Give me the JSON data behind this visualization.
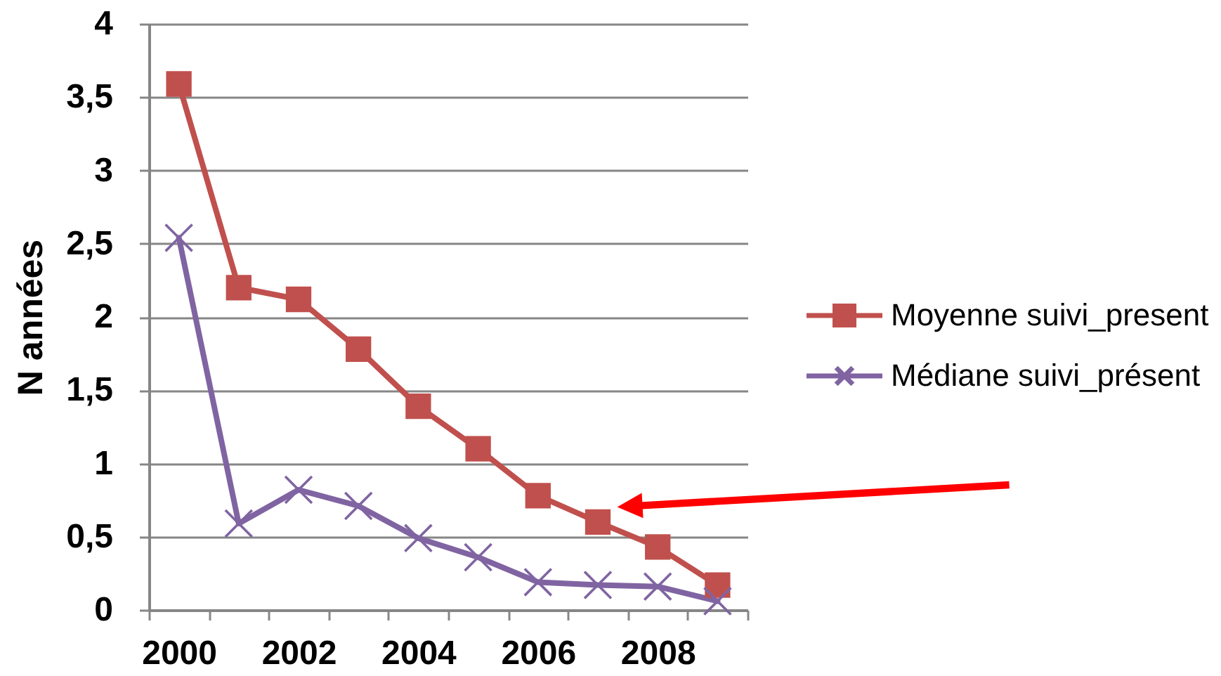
{
  "chart_data": {
    "type": "line",
    "ylabel": "N années",
    "categories": [
      "2000",
      null,
      "2002",
      null,
      "2004",
      null,
      "2006",
      null,
      "2008",
      null
    ],
    "ylim": [
      0,
      4
    ],
    "yticks": [
      0,
      {
        "value": 0.5,
        "label": "0,5"
      },
      1,
      {
        "value": 1.5,
        "label": "1,5"
      },
      2,
      {
        "value": 2.5,
        "label": "2,5"
      },
      3,
      {
        "value": 3.5,
        "label": "3,5"
      },
      4
    ],
    "grid": "y",
    "legend": "right",
    "line_style": "solid",
    "series": [
      {
        "name": "Moyenne suivi_present",
        "color": "#c0504d",
        "marker": "square",
        "values": [
          3.59,
          2.2,
          2.12,
          1.78,
          1.39,
          1.1,
          0.78,
          0.6,
          0.43,
          0.17
        ]
      },
      {
        "name": "Médiane suivi_présent",
        "color": "#8064a2",
        "marker": "cross",
        "values": [
          2.54,
          0.59,
          0.82,
          0.71,
          0.49,
          0.36,
          0.19,
          0.17,
          0.16,
          0.06
        ]
      }
    ]
  }
}
